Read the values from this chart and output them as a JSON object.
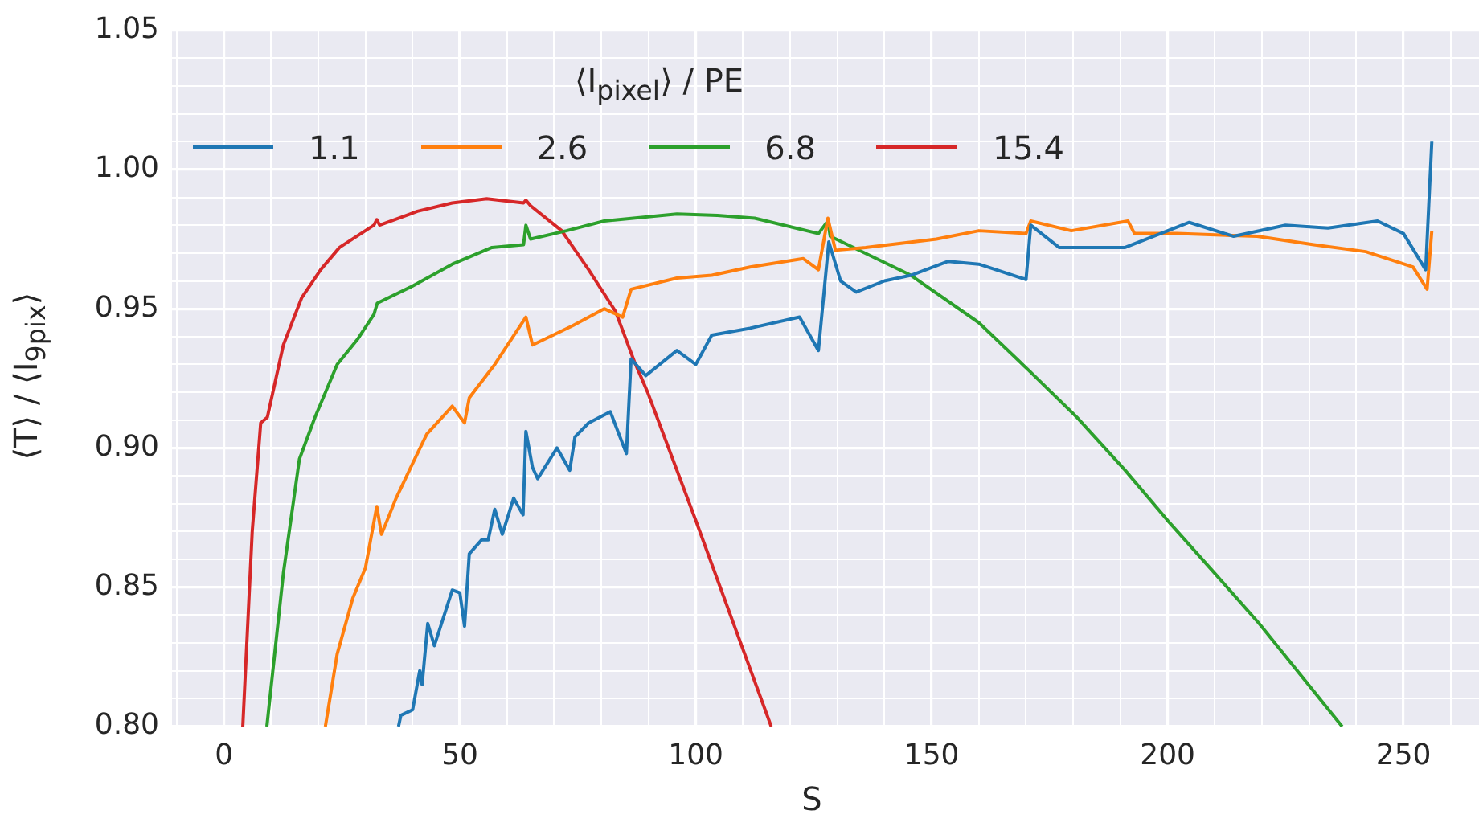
{
  "chart_data": {
    "type": "line",
    "xlabel": "S",
    "ylabel": "⟨T⟩ / ⟨I$_{9pix}$⟩",
    "legend_title": "⟨I$_{pixel}$⟩ / PE",
    "xlim": [
      -11,
      266
    ],
    "ylim": [
      0.8,
      1.05
    ],
    "xticks": [
      {
        "value": -10,
        "label": null
      },
      0,
      {
        "value": 10,
        "label": null
      },
      {
        "value": 20,
        "label": null
      },
      {
        "value": 30,
        "label": null
      },
      {
        "value": 40,
        "label": null
      },
      50,
      {
        "value": 60,
        "label": null
      },
      {
        "value": 70,
        "label": null
      },
      {
        "value": 80,
        "label": null
      },
      {
        "value": 90,
        "label": null
      },
      100,
      {
        "value": 110,
        "label": null
      },
      {
        "value": 120,
        "label": null
      },
      {
        "value": 130,
        "label": null
      },
      {
        "value": 140,
        "label": null
      },
      150,
      {
        "value": 160,
        "label": null
      },
      {
        "value": 170,
        "label": null
      },
      {
        "value": 180,
        "label": null
      },
      {
        "value": 190,
        "label": null
      },
      200,
      {
        "value": 210,
        "label": null
      },
      {
        "value": 220,
        "label": null
      },
      {
        "value": 230,
        "label": null
      },
      {
        "value": 240,
        "label": null
      },
      250,
      {
        "value": 260,
        "label": null
      }
    ],
    "yticks": [
      {
        "value": 0.8,
        "label": "0.80"
      },
      {
        "value": 0.81,
        "label": null
      },
      {
        "value": 0.82,
        "label": null
      },
      {
        "value": 0.83,
        "label": null
      },
      {
        "value": 0.84,
        "label": null
      },
      0.85,
      {
        "value": 0.86,
        "label": null
      },
      {
        "value": 0.87,
        "label": null
      },
      {
        "value": 0.88,
        "label": null
      },
      {
        "value": 0.89,
        "label": null
      },
      {
        "value": 0.9,
        "label": "0.90"
      },
      {
        "value": 0.91,
        "label": null
      },
      {
        "value": 0.92,
        "label": null
      },
      {
        "value": 0.93,
        "label": null
      },
      {
        "value": 0.94,
        "label": null
      },
      0.95,
      {
        "value": 0.96,
        "label": null
      },
      {
        "value": 0.97,
        "label": null
      },
      {
        "value": 0.98,
        "label": null
      },
      {
        "value": 0.99,
        "label": null
      },
      {
        "value": 1.0,
        "label": "1.00"
      },
      {
        "value": 1.01,
        "label": null
      },
      {
        "value": 1.02,
        "label": null
      },
      {
        "value": 1.03,
        "label": null
      },
      {
        "value": 1.04,
        "label": null
      },
      1.05
    ],
    "grid": true,
    "legend": "top left",
    "marker": "none",
    "line_style": "solid",
    "series": [
      {
        "name": "1.1",
        "color": "#1f77b4",
        "x": [
          37,
          37.5,
          40,
          41.5,
          42,
          43.2,
          44.6,
          48.4,
          50,
          51,
          52,
          54.6,
          56,
          57.4,
          59,
          61.4,
          63.4,
          64,
          65.4,
          66.5,
          70.6,
          73.3,
          74.4,
          77.3,
          81.9,
          85.3,
          86.3,
          89.4,
          96,
          100,
          103.4,
          111.5,
          122,
          126,
          128.2,
          130.7,
          134,
          140,
          145.6,
          153.5,
          160,
          170,
          171,
          177,
          191,
          204.6,
          214,
          225,
          234,
          244.5,
          250,
          254.7,
          256
        ],
        "values": [
          0.8,
          0.804,
          0.806,
          0.82,
          0.815,
          0.837,
          0.829,
          0.849,
          0.848,
          0.836,
          0.862,
          0.867,
          0.867,
          0.878,
          0.869,
          0.882,
          0.876,
          0.906,
          0.893,
          0.889,
          0.9,
          0.892,
          0.904,
          0.909,
          0.913,
          0.898,
          0.932,
          0.926,
          0.935,
          0.93,
          0.9405,
          0.943,
          0.947,
          0.935,
          0.974,
          0.96,
          0.956,
          0.96,
          0.962,
          0.967,
          0.966,
          0.9605,
          0.98,
          0.972,
          0.972,
          0.981,
          0.976,
          0.98,
          0.979,
          0.9815,
          0.977,
          0.964,
          1.01
        ]
      },
      {
        "name": "2.6",
        "color": "#ff7f0e",
        "x": [
          21.5,
          24,
          27.3,
          30,
          32.4,
          33.4,
          36.5,
          41,
          43,
          48.4,
          51,
          52,
          57.4,
          64,
          65.4,
          74,
          80.6,
          84.5,
          86.3,
          96,
          103.4,
          111.5,
          122.8,
          126,
          128,
          129.6,
          136,
          151,
          160,
          170,
          171,
          179.6,
          191.6,
          193,
          202,
          219,
          231,
          242,
          252,
          255,
          256
        ],
        "values": [
          0.8,
          0.826,
          0.846,
          0.857,
          0.879,
          0.869,
          0.882,
          0.898,
          0.905,
          0.915,
          0.909,
          0.918,
          0.93,
          0.947,
          0.937,
          0.944,
          0.95,
          0.947,
          0.957,
          0.961,
          0.962,
          0.965,
          0.968,
          0.964,
          0.9825,
          0.971,
          0.972,
          0.975,
          0.978,
          0.977,
          0.9815,
          0.978,
          0.9815,
          0.977,
          0.977,
          0.976,
          0.973,
          0.9705,
          0.965,
          0.957,
          0.978
        ]
      },
      {
        "name": "6.8",
        "color": "#2ca02c",
        "x": [
          9.1,
          12.6,
          16,
          19.3,
          24,
          28.3,
          31.8,
          32.5,
          39.8,
          48.4,
          56.8,
          63.5,
          64,
          65,
          72.6,
          80.6,
          96,
          104.6,
          112.5,
          126,
          128,
          128.5,
          145.6,
          160,
          170.5,
          180.8,
          191,
          200,
          210,
          219.4,
          237
        ],
        "values": [
          0.8,
          0.855,
          0.896,
          0.911,
          0.93,
          0.939,
          0.948,
          0.952,
          0.958,
          0.966,
          0.972,
          0.973,
          0.98,
          0.975,
          0.978,
          0.9815,
          0.984,
          0.9835,
          0.9825,
          0.977,
          0.9815,
          0.976,
          0.962,
          0.945,
          0.928,
          0.911,
          0.892,
          0.874,
          0.855,
          0.837,
          0.8
        ]
      },
      {
        "name": "15.4",
        "color": "#d62728",
        "x": [
          4,
          6,
          7.8,
          9.2,
          12.6,
          16.5,
          20.5,
          24.5,
          31.8,
          32.4,
          33,
          41,
          48.4,
          55.7,
          63.5,
          64,
          65,
          71.6,
          77.3,
          83,
          87,
          89.8,
          100,
          116
        ],
        "values": [
          0.8,
          0.87,
          0.909,
          0.911,
          0.937,
          0.954,
          0.964,
          0.972,
          0.98,
          0.982,
          0.98,
          0.985,
          0.988,
          0.9895,
          0.988,
          0.989,
          0.987,
          0.978,
          0.964,
          0.949,
          0.931,
          0.92,
          0.874,
          0.8
        ]
      }
    ]
  }
}
